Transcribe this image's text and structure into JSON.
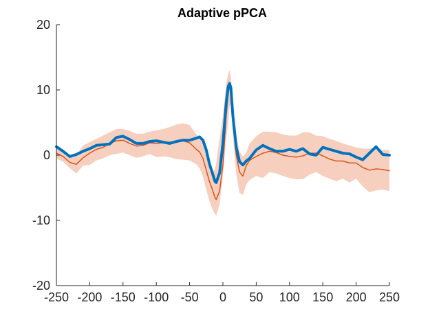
{
  "chart_data": {
    "type": "line",
    "title": "Adaptive pPCA",
    "xlabel": "",
    "ylabel": "",
    "xlim": [
      -250,
      250
    ],
    "ylim": [
      -20,
      20
    ],
    "xticks": [
      -250,
      -200,
      -150,
      -100,
      -50,
      0,
      50,
      100,
      150,
      200,
      250
    ],
    "yticks": [
      -20,
      -10,
      0,
      10,
      20
    ],
    "xtick_labels": [
      "-250",
      "-200",
      "-150",
      "-100",
      "-50",
      "0",
      "50",
      "100",
      "150",
      "200",
      "250"
    ],
    "ytick_labels": [
      "-20",
      "-10",
      "0",
      "10",
      "20"
    ],
    "grid": false,
    "legend": "none",
    "x": [
      -250,
      -240,
      -230,
      -220,
      -210,
      -200,
      -190,
      -180,
      -170,
      -160,
      -150,
      -140,
      -130,
      -120,
      -110,
      -100,
      -90,
      -80,
      -70,
      -60,
      -50,
      -40,
      -35,
      -30,
      -25,
      -20,
      -15,
      -12,
      -10,
      -5,
      0,
      5,
      8,
      10,
      12,
      15,
      20,
      25,
      30,
      35,
      40,
      50,
      60,
      70,
      80,
      90,
      100,
      110,
      120,
      130,
      140,
      150,
      160,
      170,
      180,
      190,
      200,
      210,
      220,
      230,
      240,
      250
    ],
    "series": [
      {
        "role": "band",
        "color": "#F6CFBF",
        "upper": [
          1.0,
          0.6,
          -0.2,
          0.0,
          1.5,
          2.0,
          2.5,
          3.0,
          3.5,
          4.0,
          4.0,
          3.7,
          3.3,
          3.3,
          3.6,
          3.8,
          4.0,
          4.3,
          4.7,
          4.9,
          4.6,
          3.2,
          2.8,
          2.2,
          0.6,
          -1.2,
          -2.5,
          -2.2,
          -1.2,
          2.5,
          6.0,
          11.0,
          12.5,
          13.0,
          12.0,
          8.0,
          3.0,
          0.6,
          -0.2,
          0.4,
          1.8,
          2.9,
          3.6,
          3.6,
          3.5,
          3.2,
          3.0,
          3.0,
          3.5,
          3.5,
          3.0,
          2.9,
          2.5,
          2.2,
          1.8,
          1.5,
          1.2,
          1.0,
          1.0,
          1.2,
          0.8,
          0.8
        ],
        "lower": [
          -0.5,
          -1.0,
          -2.0,
          -2.8,
          -1.6,
          -1.5,
          -0.8,
          -0.5,
          0.0,
          0.2,
          0.4,
          0.0,
          -0.4,
          -0.2,
          0.2,
          -0.3,
          -0.2,
          -0.3,
          -0.6,
          -0.7,
          -0.8,
          -1.4,
          -2.0,
          -3.3,
          -5.3,
          -7.1,
          -8.5,
          -9.0,
          -9.3,
          -7.5,
          -3.0,
          2.5,
          5.0,
          7.5,
          7.8,
          3.0,
          -3.0,
          -5.8,
          -6.1,
          -4.5,
          -3.8,
          -3.2,
          -3.5,
          -2.6,
          -2.8,
          -3.2,
          -3.5,
          -3.7,
          -3.7,
          -3.0,
          -2.6,
          -3.2,
          -3.6,
          -4.0,
          -3.6,
          -4.2,
          -3.6,
          -4.8,
          -5.7,
          -5.4,
          -5.3,
          -5.5
        ]
      },
      {
        "role": "mean",
        "color": "#D95319",
        "values": [
          0.3,
          -0.2,
          -1.1,
          -1.4,
          -0.4,
          0.3,
          0.9,
          1.2,
          1.8,
          2.2,
          2.3,
          1.8,
          1.4,
          1.5,
          1.9,
          1.8,
          1.9,
          2.0,
          2.1,
          2.2,
          1.9,
          0.9,
          0.5,
          -0.5,
          -2.3,
          -4.1,
          -5.5,
          -6.5,
          -6.8,
          -5.5,
          -1.5,
          6.0,
          9.5,
          10.6,
          10.0,
          5.5,
          0.0,
          -2.6,
          -3.2,
          -1.6,
          -0.8,
          -0.2,
          0.3,
          0.6,
          0.4,
          0.0,
          -0.2,
          -0.3,
          -0.1,
          0.3,
          0.3,
          -0.1,
          -0.6,
          -0.9,
          -0.9,
          -1.2,
          -1.2,
          -1.9,
          -2.3,
          -2.1,
          -2.2,
          -2.4
        ]
      },
      {
        "role": "estimate",
        "color": "#0072BD",
        "values": [
          1.3,
          0.6,
          -0.2,
          0.1,
          0.6,
          1.0,
          1.5,
          1.6,
          1.7,
          2.7,
          2.9,
          2.4,
          1.8,
          1.8,
          2.1,
          2.2,
          2.0,
          1.8,
          2.1,
          2.3,
          2.3,
          2.6,
          2.8,
          2.3,
          0.8,
          -1.4,
          -3.0,
          -4.0,
          -4.2,
          -2.7,
          1.8,
          8.0,
          10.5,
          11.0,
          10.3,
          6.0,
          1.2,
          -1.0,
          -1.5,
          -0.9,
          -0.5,
          0.8,
          1.5,
          1.0,
          0.6,
          0.6,
          0.9,
          0.6,
          1.0,
          0.2,
          0.0,
          1.2,
          0.9,
          0.6,
          0.3,
          0.2,
          -0.3,
          -0.7,
          0.3,
          1.3,
          0.1,
          0.0
        ]
      }
    ]
  }
}
